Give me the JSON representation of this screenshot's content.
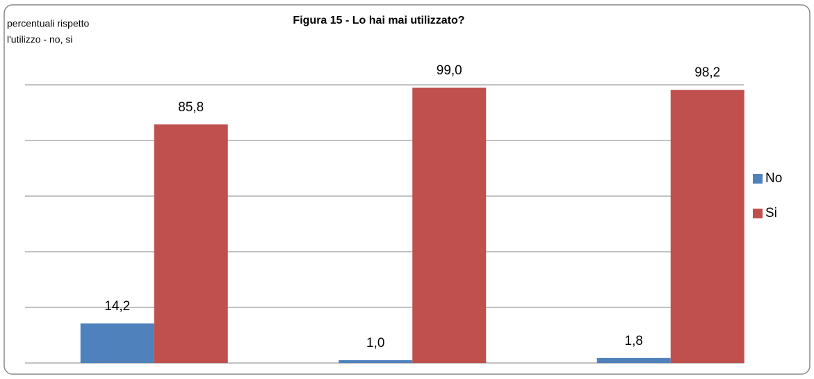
{
  "chart_data": {
    "type": "bar",
    "title": "Figura 15 - Lo hai mai utilizzato?",
    "y_label": [
      "percentuali rispetto",
      "l'utilizzo - no, si"
    ],
    "categories": [
      null,
      null,
      null
    ],
    "series": [
      {
        "name": "No",
        "color": "#4f81bd",
        "values": [
          14.2,
          1.0,
          1.8
        ],
        "value_labels": [
          "14,2",
          "1,0",
          "1,8"
        ]
      },
      {
        "name": "Si",
        "color": "#c0504d",
        "values": [
          85.8,
          99.0,
          98.2
        ],
        "value_labels": [
          "85,8",
          "99,0",
          "98,2"
        ]
      }
    ],
    "ylim": [
      0,
      100
    ],
    "yticks": [
      0,
      20,
      40,
      60,
      80,
      100
    ],
    "grid": true,
    "legend": "right"
  }
}
